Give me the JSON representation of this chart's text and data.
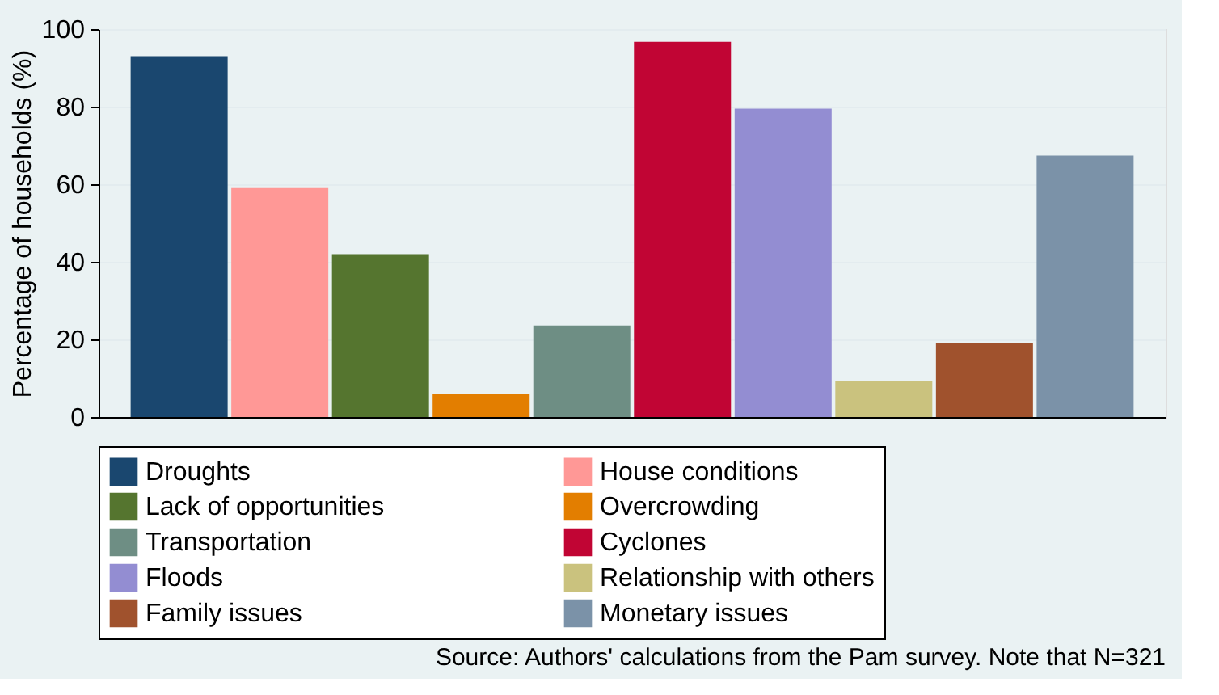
{
  "chart_data": {
    "type": "bar",
    "ylabel": "Percentage of households (%)",
    "categories": [
      null
    ],
    "series": [
      {
        "name": "Droughts",
        "color": "#1a476f",
        "values": [
          93
        ]
      },
      {
        "name": "House conditions",
        "color": "#ff9896",
        "values": [
          59
        ]
      },
      {
        "name": "Lack of opportunities",
        "color": "#55752f",
        "values": [
          42
        ]
      },
      {
        "name": "Overcrowding",
        "color": "#e37e00",
        "values": [
          6
        ]
      },
      {
        "name": "Transportation",
        "color": "#6e8e84",
        "values": [
          23.6
        ]
      },
      {
        "name": "Cyclones",
        "color": "#c10534",
        "values": [
          96.7
        ]
      },
      {
        "name": "Floods",
        "color": "#938dd2",
        "values": [
          79.5
        ]
      },
      {
        "name": "Relationship with others",
        "color": "#cac27e",
        "values": [
          9.2
        ]
      },
      {
        "name": "Family issues",
        "color": "#a0522d",
        "values": [
          19.1
        ]
      },
      {
        "name": "Monetary issues",
        "color": "#7b92a8",
        "values": [
          67.4
        ]
      }
    ],
    "ylim": [
      0,
      100
    ],
    "yticks": [
      0,
      20,
      40,
      60,
      80,
      100
    ],
    "grid": "y",
    "legend": "bottom",
    "tick_labels": "y",
    "annotations": [
      "Source: Authors' calculations from the Pam survey. Note that N=321"
    ]
  }
}
